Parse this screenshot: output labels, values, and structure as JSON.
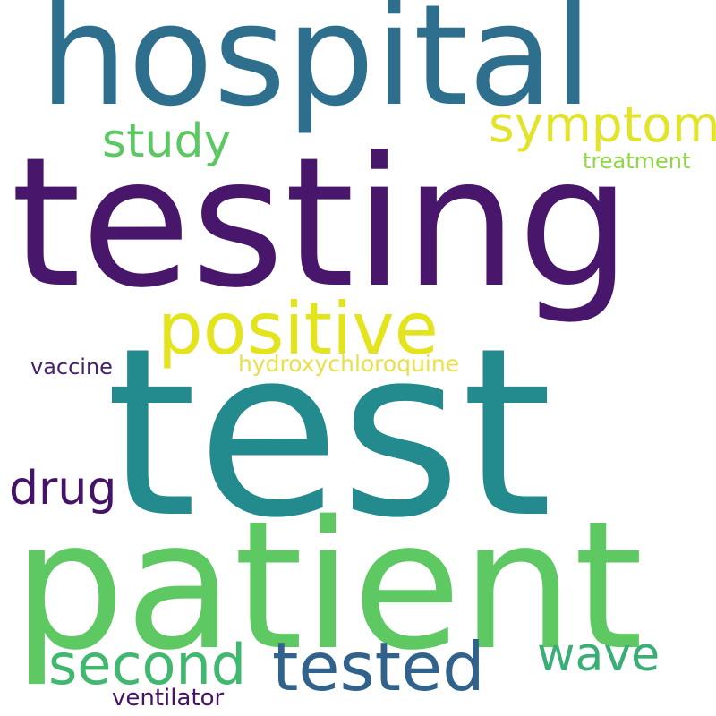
{
  "words": {
    "hospital": {
      "text": "hospital",
      "color": "#2f6f8e"
    },
    "testing": {
      "text": "testing",
      "color": "#48166b"
    },
    "study": {
      "text": "study",
      "color": "#5cc863"
    },
    "symptom": {
      "text": "symptom",
      "color": "#e1e42a"
    },
    "treatment": {
      "text": "treatment",
      "color": "#8fd744"
    },
    "positive": {
      "text": "positive",
      "color": "#e3e41d"
    },
    "vaccine": {
      "text": "vaccine",
      "color": "#46226e"
    },
    "hydroxychloroquine": {
      "text": "hydroxychloroquine",
      "color": "#e8e04a"
    },
    "test": {
      "text": "test",
      "color": "#238a8d"
    },
    "drug": {
      "text": "drug",
      "color": "#45126a"
    },
    "patient": {
      "text": "patient",
      "color": "#5ec962"
    },
    "second": {
      "text": "second",
      "color": "#41b86f"
    },
    "tested": {
      "text": "tested",
      "color": "#30628c"
    },
    "wave": {
      "text": "wave",
      "color": "#3bae78"
    },
    "ventilator": {
      "text": "ventilator",
      "color": "#471367"
    }
  }
}
